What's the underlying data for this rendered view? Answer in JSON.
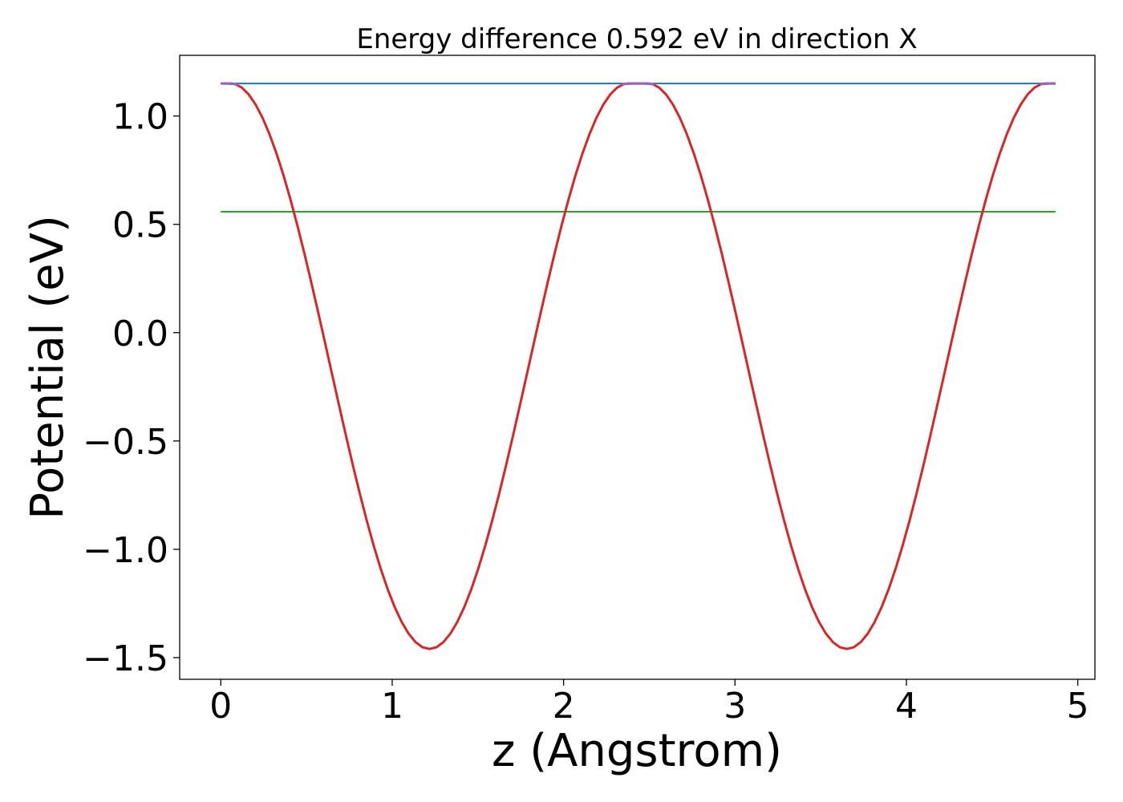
{
  "chart_data": {
    "type": "line",
    "title": "Energy difference 0.592 eV in direction X",
    "xlabel": "z (Angstrom)",
    "ylabel": "Potential (eV)",
    "xlim": [
      -0.24,
      5.1
    ],
    "ylim": [
      -1.6,
      1.28
    ],
    "xticks": [
      0,
      1,
      2,
      3,
      4,
      5
    ],
    "xtick_labels": [
      "0",
      "1",
      "2",
      "3",
      "4",
      "5"
    ],
    "yticks": [
      -1.5,
      -1.0,
      -0.5,
      0.0,
      0.5,
      1.0
    ],
    "ytick_labels": [
      "−1.5",
      "−1.0",
      "−0.5",
      "0.0",
      "0.5",
      "1.0"
    ],
    "grid": false,
    "legend": "none",
    "curve": {
      "color": "#d62728",
      "z_range": [
        0,
        4.87
      ],
      "period": 2.435,
      "max": 1.15,
      "min": -1.46,
      "flat_width": 0.12,
      "samples": 120
    },
    "hlines": [
      {
        "y": 1.15,
        "color": "#1f77b4",
        "x": [
          0,
          4.87
        ]
      },
      {
        "y": 0.558,
        "color": "#2ca02c",
        "x": [
          0,
          4.87
        ]
      }
    ],
    "overlay": {
      "color": "#9467bd",
      "segments": [
        [
          0,
          0.1
        ],
        [
          2.34,
          2.53
        ],
        [
          4.78,
          4.87
        ]
      ]
    }
  }
}
